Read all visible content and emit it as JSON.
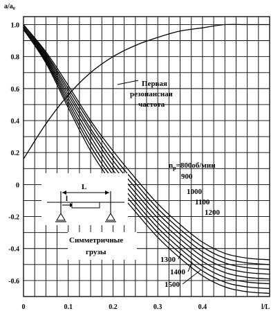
{
  "chart_data": {
    "type": "line",
    "title": "",
    "xlabel": "l/L",
    "ylabel": "a/a₀",
    "xlim": [
      0,
      0.55
    ],
    "ylim": [
      -0.7,
      1.05
    ],
    "x_ticks": [
      "0",
      "0.1",
      "0.2",
      "0.3",
      "0.4"
    ],
    "y_ticks": [
      "1.0",
      "0.8",
      "0.6",
      "0.4",
      "0.2",
      "0",
      "-0.2",
      "-0.4",
      "-0.6"
    ],
    "grid": true,
    "series": [
      {
        "name": "nр=800об/мин",
        "x": [
          0,
          0.05,
          0.1,
          0.15,
          0.2,
          0.25,
          0.3,
          0.35,
          0.4,
          0.45,
          0.5,
          0.55
        ],
        "y": [
          1.0,
          0.83,
          0.62,
          0.4,
          0.21,
          0.04,
          -0.12,
          -0.25,
          -0.36,
          -0.43,
          -0.46,
          -0.47
        ]
      },
      {
        "name": "900",
        "x": [
          0,
          0.05,
          0.1,
          0.15,
          0.2,
          0.25,
          0.3,
          0.35,
          0.4,
          0.45,
          0.5,
          0.55
        ],
        "y": [
          1.0,
          0.82,
          0.6,
          0.38,
          0.18,
          0.01,
          -0.15,
          -0.28,
          -0.39,
          -0.46,
          -0.49,
          -0.5
        ]
      },
      {
        "name": "1000",
        "x": [
          0,
          0.05,
          0.1,
          0.15,
          0.2,
          0.25,
          0.3,
          0.35,
          0.4,
          0.45,
          0.5,
          0.55
        ],
        "y": [
          0.99,
          0.81,
          0.58,
          0.35,
          0.15,
          -0.02,
          -0.18,
          -0.31,
          -0.42,
          -0.49,
          -0.52,
          -0.53
        ]
      },
      {
        "name": "1100",
        "x": [
          0,
          0.05,
          0.1,
          0.15,
          0.2,
          0.25,
          0.3,
          0.35,
          0.4,
          0.45,
          0.5,
          0.55
        ],
        "y": [
          0.99,
          0.8,
          0.56,
          0.33,
          0.12,
          -0.05,
          -0.21,
          -0.34,
          -0.45,
          -0.52,
          -0.55,
          -0.56
        ]
      },
      {
        "name": "1200",
        "x": [
          0,
          0.05,
          0.1,
          0.15,
          0.2,
          0.25,
          0.3,
          0.35,
          0.4,
          0.45,
          0.5,
          0.55
        ],
        "y": [
          0.98,
          0.79,
          0.54,
          0.3,
          0.09,
          -0.08,
          -0.24,
          -0.37,
          -0.48,
          -0.55,
          -0.58,
          -0.59
        ]
      },
      {
        "name": "1300",
        "x": [
          0,
          0.05,
          0.1,
          0.15,
          0.2,
          0.25,
          0.3,
          0.35,
          0.4,
          0.45,
          0.5,
          0.55
        ],
        "y": [
          0.98,
          0.78,
          0.52,
          0.27,
          0.06,
          -0.11,
          -0.27,
          -0.4,
          -0.51,
          -0.58,
          -0.61,
          -0.62
        ]
      },
      {
        "name": "1400",
        "x": [
          0,
          0.05,
          0.1,
          0.15,
          0.2,
          0.25,
          0.3,
          0.35,
          0.4,
          0.45,
          0.5,
          0.55
        ],
        "y": [
          0.97,
          0.77,
          0.5,
          0.24,
          0.03,
          -0.14,
          -0.3,
          -0.43,
          -0.54,
          -0.61,
          -0.64,
          -0.65
        ]
      },
      {
        "name": "1500",
        "x": [
          0,
          0.05,
          0.1,
          0.15,
          0.2,
          0.25,
          0.3,
          0.35,
          0.4,
          0.45,
          0.5,
          0.55
        ],
        "y": [
          0.97,
          0.76,
          0.48,
          0.21,
          0.0,
          -0.17,
          -0.33,
          -0.46,
          -0.57,
          -0.64,
          -0.67,
          -0.68
        ]
      },
      {
        "name": "Первая резонансная частота",
        "x": [
          0,
          0.05,
          0.1,
          0.15,
          0.2,
          0.25,
          0.3,
          0.35,
          0.4,
          0.45,
          0.5,
          0.55
        ],
        "y": [
          0.16,
          0.38,
          0.56,
          0.7,
          0.8,
          0.87,
          0.92,
          0.96,
          0.98,
          1.0,
          1.0,
          1.0
        ]
      }
    ],
    "annotations": {
      "resonance_label": [
        "Первая",
        "резонансная",
        "частота"
      ],
      "symmetric_label": [
        "Симметричные",
        "грузы"
      ],
      "speed_prefix": "n",
      "speed_subscript": "р",
      "speed_first_rest": "=800об/мин",
      "inset_L": "L",
      "inset_l": "l"
    }
  }
}
